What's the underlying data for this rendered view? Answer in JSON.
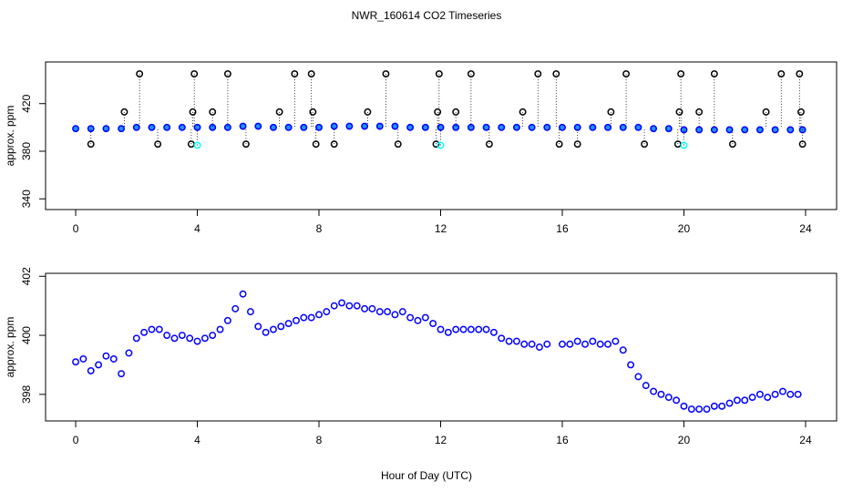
{
  "chart_data": [
    {
      "type": "scatter",
      "title": "NWR_160614  CO2 Timeseries",
      "ylabel": "approx. ppm",
      "xlim": [
        -0.99,
        25.02
      ],
      "xticks": [
        0,
        4,
        8,
        12,
        16,
        20,
        24
      ],
      "ylim": [
        331,
        455
      ],
      "yticks": [
        340,
        380,
        420
      ],
      "series": [
        {
          "color": "#0000ff",
          "fill": "#1e90ff",
          "x": [
            0,
            0.5,
            1,
            1.5,
            2,
            2.5,
            3,
            3.5,
            4,
            4.5,
            5,
            5.5,
            6,
            6.5,
            7,
            7.5,
            8,
            8.5,
            9,
            9.5,
            10,
            10.5,
            11,
            11.5,
            12,
            12.5,
            13,
            13.5,
            14,
            14.5,
            15,
            15.5,
            16,
            16.5,
            17,
            17.5,
            18,
            18.5,
            19,
            19.5,
            20,
            20.5,
            21,
            21.5,
            22,
            22.5,
            23,
            23.5,
            23.9
          ],
          "values": [
            399,
            399,
            399,
            399,
            400,
            400,
            400,
            400,
            400,
            400,
            400,
            401,
            401,
            400,
            400,
            400,
            400,
            401,
            401,
            401,
            401,
            401,
            400,
            400,
            400,
            400,
            400,
            400,
            400,
            400,
            400,
            400,
            400,
            400,
            400,
            400,
            400,
            400,
            399,
            399,
            398,
            398,
            398,
            398,
            398,
            398,
            398,
            398,
            398
          ]
        },
        {
          "color": "#000000",
          "x": [
            2.1,
            3.9,
            5.0,
            7.2,
            7.75,
            10.2,
            11.95,
            13.0,
            15.2,
            15.8,
            18.1,
            19.9,
            21.0,
            23.2,
            23.8,
            1.6,
            3.85,
            4.5,
            6.7,
            7.8,
            9.6,
            11.9,
            12.5,
            14.7,
            17.6,
            19.85,
            20.5,
            22.7,
            23.85,
            0.5,
            2.7,
            3.8,
            5.6,
            7.9,
            8.5,
            10.6,
            11.85,
            13.6,
            15.9,
            16.5,
            18.7,
            19.8,
            21.6,
            23.9
          ],
          "values": [
            445,
            445,
            445,
            445,
            445,
            445,
            445,
            445,
            445,
            445,
            445,
            445,
            445,
            445,
            445,
            413,
            413,
            413,
            413,
            413,
            413,
            413,
            413,
            413,
            413,
            413,
            413,
            413,
            413,
            386,
            386,
            386,
            386,
            386,
            386,
            386,
            386,
            386,
            386,
            386,
            386,
            386,
            386,
            386
          ]
        },
        {
          "color": "#00ffff",
          "x": [
            4.0,
            12.0,
            20.0
          ],
          "values": [
            385,
            385,
            385
          ]
        }
      ]
    },
    {
      "type": "scatter",
      "ylabel": "approx. ppm",
      "xlabel": "Hour of Day (UTC)",
      "xlim": [
        -0.99,
        25.02
      ],
      "xticks": [
        0,
        4,
        8,
        12,
        16,
        20,
        24
      ],
      "ylim": [
        397.1,
        402.1
      ],
      "yticks": [
        398,
        400,
        402
      ],
      "series": [
        {
          "color": "#0000ff",
          "x": [
            0,
            0.25,
            0.5,
            0.75,
            1,
            1.25,
            1.5,
            1.75,
            2,
            2.25,
            2.5,
            2.75,
            3,
            3.25,
            3.5,
            3.75,
            4,
            4.25,
            4.5,
            4.75,
            5,
            5.25,
            5.5,
            5.75,
            6,
            6.25,
            6.5,
            6.75,
            7,
            7.25,
            7.5,
            7.75,
            8,
            8.25,
            8.5,
            8.75,
            9,
            9.25,
            9.5,
            9.75,
            10,
            10.25,
            10.5,
            10.75,
            11,
            11.25,
            11.5,
            11.75,
            12,
            12.25,
            12.5,
            12.75,
            13,
            13.25,
            13.5,
            13.75,
            14,
            14.25,
            14.5,
            14.75,
            15,
            15.25,
            15.5,
            16,
            16.25,
            16.5,
            16.75,
            17,
            17.25,
            17.5,
            17.75,
            18,
            18.25,
            18.5,
            18.75,
            19,
            19.25,
            19.5,
            19.75,
            20,
            20.25,
            20.5,
            20.75,
            21,
            21.25,
            21.5,
            21.75,
            22,
            22.25,
            22.5,
            22.75,
            23,
            23.25,
            23.5,
            23.75
          ],
          "values": [
            399.1,
            399.2,
            398.8,
            399.0,
            399.3,
            399.2,
            398.7,
            399.4,
            399.9,
            400.1,
            400.2,
            400.2,
            400.0,
            399.9,
            400.0,
            399.9,
            399.8,
            399.9,
            400.0,
            400.2,
            400.5,
            400.9,
            401.4,
            400.8,
            400.3,
            400.1,
            400.2,
            400.3,
            400.4,
            400.5,
            400.6,
            400.6,
            400.7,
            400.8,
            401.0,
            401.1,
            401.0,
            401.0,
            400.9,
            400.9,
            400.8,
            400.8,
            400.7,
            400.8,
            400.6,
            400.5,
            400.6,
            400.4,
            400.2,
            400.1,
            400.2,
            400.2,
            400.2,
            400.2,
            400.2,
            400.1,
            399.9,
            399.8,
            399.8,
            399.7,
            399.7,
            399.6,
            399.7,
            399.7,
            399.7,
            399.8,
            399.7,
            399.8,
            399.7,
            399.7,
            399.8,
            399.5,
            399.0,
            398.6,
            398.3,
            398.1,
            398.0,
            397.9,
            397.8,
            397.6,
            397.5,
            397.5,
            397.5,
            397.6,
            397.6,
            397.7,
            397.8,
            397.8,
            397.9,
            398.0,
            397.9,
            398.0,
            398.1,
            398.0,
            398.0
          ]
        }
      ]
    }
  ]
}
